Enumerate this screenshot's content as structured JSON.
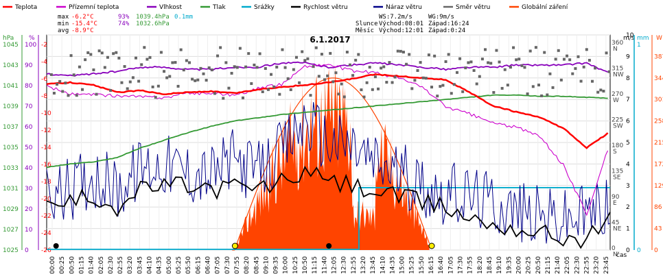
{
  "chart_data": {
    "type": "line",
    "title": "6.1.2017",
    "xlabel": "čas",
    "legend": [
      {
        "name": "Teplota",
        "color": "#ff0000"
      },
      {
        "name": "Přízemní teplota",
        "color": "#cc00cc"
      },
      {
        "name": "Vlhkost",
        "color": "#8800bb"
      },
      {
        "name": "Tlak",
        "color": "#339933"
      },
      {
        "name": "Srážky",
        "color": "#00aacc"
      },
      {
        "name": "Rychlost větru",
        "color": "#000000"
      },
      {
        "name": "Náraz větru",
        "color": "#000088"
      },
      {
        "name": "Směr větru",
        "color": "#666666"
      },
      {
        "name": "Globální záření",
        "color": "#ff4400"
      }
    ],
    "stats": {
      "max_label": "max",
      "max_temp": "-6.2°C",
      "max_hum": "93%",
      "max_press": "1039.4hPa",
      "max_rain": "0.1mm",
      "min_label": "min",
      "min_temp": "-15.4°C",
      "min_hum": "74%",
      "min_press": "1032.6hPa",
      "avg_label": "avg",
      "avg_temp": "-8.9°C",
      "ws": "WS:7.2m/s",
      "wg": "WG:9m/s",
      "sun_label": "Slunce",
      "sun_rise": "Východ:08:01",
      "sun_set": "Západ:16:24",
      "moon_label": "Měsíc",
      "moon_rise": "Východ:12:01",
      "moon_set": "Západ:0:24"
    },
    "axes": {
      "pressure": {
        "unit": "hPa",
        "color": "#339933",
        "ticks": [
          "1045",
          "1043",
          "1041",
          "1039",
          "1037",
          "1035",
          "1033",
          "1031",
          "1029",
          "1027",
          "1025"
        ]
      },
      "humidity": {
        "unit": "%",
        "color": "#8800bb",
        "ticks": [
          "100",
          "90",
          "80",
          "70",
          "60",
          "50",
          "40",
          "30",
          "20",
          "10",
          "0"
        ]
      },
      "temperature": {
        "unit": "°C",
        "color": "#ff0000",
        "ticks": [
          "-2",
          "-4",
          "-6",
          "-8",
          "-10",
          "-12",
          "-14",
          "-16",
          "-18",
          "-20",
          "-22",
          "-24",
          "-26"
        ]
      },
      "direction": {
        "ticks": [
          {
            "v": "360",
            "d": "N"
          },
          {
            "v": "315",
            "d": "NW"
          },
          {
            "v": "270",
            "d": "W"
          },
          {
            "v": "225",
            "d": "SW"
          },
          {
            "v": "180",
            "d": "S"
          },
          {
            "v": "135",
            "d": "SE"
          },
          {
            "v": "90",
            "d": "E"
          },
          {
            "v": "45",
            "d": "NE"
          },
          {
            "v": "0",
            "d": "N"
          }
        ]
      },
      "wind": {
        "unit": "m/s",
        "color": "#000000",
        "ticks": [
          "10",
          "9",
          "8",
          "7",
          "6",
          "5",
          "4",
          "3",
          "2",
          "1",
          "0"
        ]
      },
      "rain": {
        "unit": "mm",
        "color": "#00aacc",
        "ticks": [
          "1",
          "0"
        ]
      },
      "radiation": {
        "unit": "W",
        "color": "#ff4400",
        "ticks": [
          "387",
          "344",
          "301",
          "258",
          "215",
          "172",
          "129",
          "86",
          "43",
          "0"
        ]
      }
    },
    "x_ticks": [
      "00:00",
      "00:25",
      "00:50",
      "01:15",
      "01:40",
      "02:05",
      "02:30",
      "02:55",
      "03:20",
      "03:45",
      "04:10",
      "04:35",
      "05:00",
      "05:25",
      "05:50",
      "06:15",
      "06:40",
      "07:05",
      "07:30",
      "07:55",
      "08:20",
      "08:45",
      "09:10",
      "09:35",
      "10:00",
      "10:25",
      "10:50",
      "11:15",
      "11:40",
      "12:05",
      "12:30",
      "12:55",
      "13:20",
      "13:45",
      "14:10",
      "14:35",
      "15:00",
      "15:25",
      "15:50",
      "16:15",
      "16:40",
      "17:05",
      "17:30",
      "17:55",
      "18:20",
      "18:45",
      "19:10",
      "19:35",
      "20:00",
      "20:25",
      "20:50",
      "21:15",
      "21:40",
      "22:05",
      "22:30",
      "22:55",
      "23:20",
      "23:45"
    ],
    "series": {
      "teplota_h": [
        0,
        1,
        2,
        3,
        4,
        5,
        6,
        7,
        8,
        9,
        10,
        11,
        12,
        13,
        14,
        15,
        16,
        17,
        18,
        19,
        20,
        21,
        22,
        23,
        24
      ],
      "teplota": [
        -7.5,
        -7.3,
        -7.6,
        -8.4,
        -8.2,
        -8.6,
        -8.4,
        -8.3,
        -8.5,
        -8.1,
        -7.8,
        -7.6,
        -7.3,
        -6.9,
        -6.4,
        -6.6,
        -6.8,
        -7.0,
        -8.4,
        -9.9,
        -10.6,
        -11.2,
        -12.4,
        -14.6,
        -12.8
      ],
      "prizemni": [
        -7.7,
        -8.6,
        -8.7,
        -8.8,
        -8.9,
        -9.0,
        -8.5,
        -8.5,
        -8.7,
        -8.0,
        -7.5,
        -5.5,
        -5.3,
        -6.0,
        -6.2,
        -6.8,
        -7.8,
        -10.0,
        -10.8,
        -11.8,
        -12.3,
        -13.3,
        -16.5,
        -22.0,
        -14.0
      ],
      "vlhkost": [
        82,
        81,
        82,
        83,
        85,
        85,
        84,
        84,
        85,
        85,
        87,
        87,
        85,
        86,
        87,
        86,
        85,
        84,
        85,
        85,
        86,
        86,
        86,
        87,
        82
      ],
      "tlak": [
        1032.7,
        1033.0,
        1033.2,
        1033.6,
        1034.5,
        1035.2,
        1035.9,
        1036.5,
        1037.0,
        1037.3,
        1037.6,
        1037.8,
        1038.0,
        1038.2,
        1038.4,
        1038.6,
        1038.8,
        1039.0,
        1039.2,
        1039.4,
        1039.4,
        1039.3,
        1039.3,
        1039.2,
        1039.1
      ],
      "vitr": [
        2.0,
        2.2,
        2.5,
        2.0,
        2.8,
        3.0,
        3.0,
        2.8,
        3.0,
        2.8,
        3.2,
        3.6,
        3.2,
        3.0,
        2.7,
        2.5,
        2.2,
        2.0,
        1.5,
        1.2,
        1.0,
        0.8,
        0.6,
        0.5,
        1.4
      ],
      "naraz": [
        2.5,
        2.8,
        3.5,
        2.8,
        3.8,
        4.0,
        3.6,
        3.5,
        4.2,
        3.6,
        4.5,
        6.0,
        5.0,
        4.8,
        4.0,
        3.6,
        3.0,
        2.6,
        2.5,
        2.2,
        1.8,
        1.5,
        1.4,
        1.6,
        2.2
      ],
      "smer_avg": 310,
      "srazky_total": 0.1,
      "zareni_peak": 387,
      "zareni_clearsky": 344
    }
  }
}
